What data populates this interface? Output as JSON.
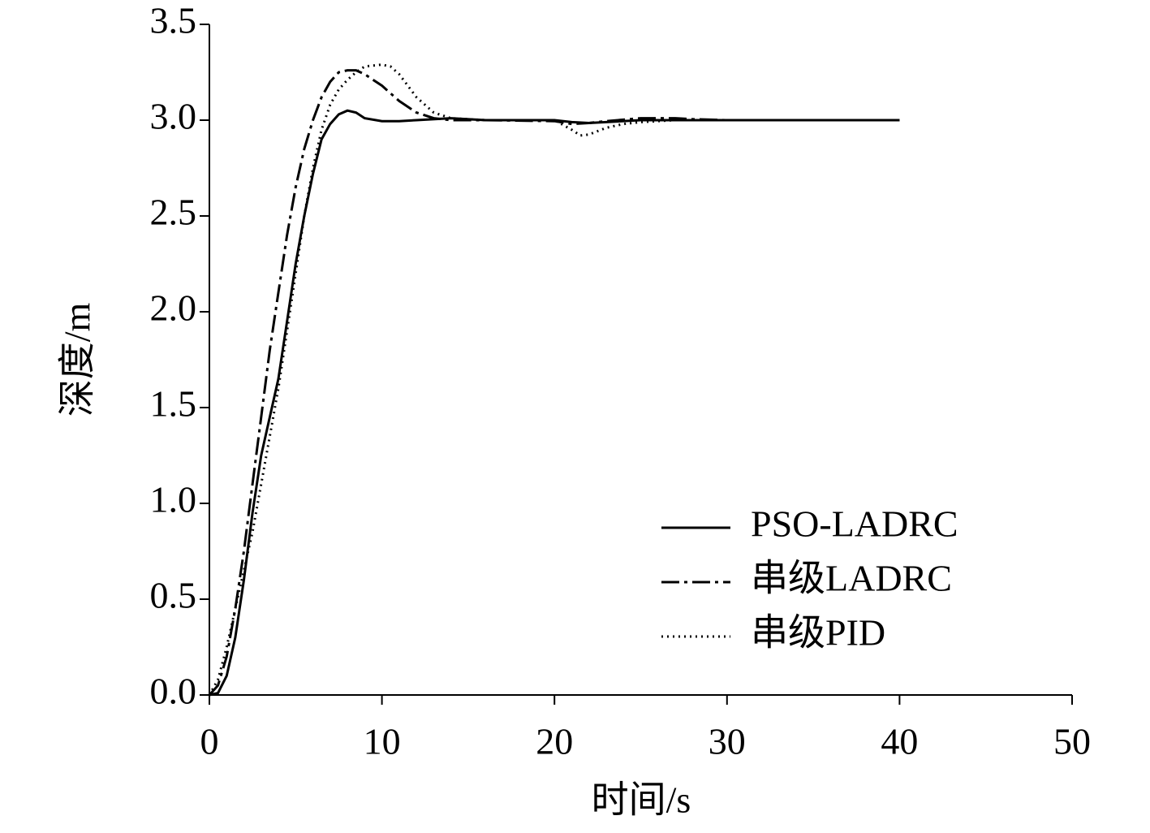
{
  "chart_data": {
    "type": "line",
    "xlabel": "时间/s",
    "ylabel": "深度/m",
    "xlim": [
      0,
      50
    ],
    "xticks": [
      0,
      10,
      20,
      30,
      40,
      50
    ],
    "ylim": [
      0,
      3.5
    ],
    "yticks": [
      {
        "value": 0,
        "label": "0.0"
      },
      {
        "value": 0.5,
        "label": "0.5"
      },
      {
        "value": 1,
        "label": "1.0"
      },
      {
        "value": 1.5,
        "label": "1.5"
      },
      {
        "value": 2,
        "label": "2.0"
      },
      {
        "value": 2.5,
        "label": "2.5"
      },
      {
        "value": 3,
        "label": "3.0"
      },
      {
        "value": 3.5,
        "label": "3.5"
      }
    ],
    "legend": "lower right",
    "series": [
      {
        "name": "PSO-LADRC",
        "color": "#000000",
        "style": "solid",
        "x": [
          0,
          0.5,
          1,
          1.5,
          2,
          2.5,
          3,
          3.5,
          4,
          4.5,
          5,
          5.5,
          6,
          6.5,
          7,
          7.5,
          8,
          8.5,
          9,
          10,
          11,
          12,
          14,
          16,
          20,
          21,
          22,
          23,
          25,
          30,
          40
        ],
        "values": [
          0,
          0.01,
          0.1,
          0.3,
          0.6,
          0.95,
          1.25,
          1.45,
          1.65,
          1.95,
          2.25,
          2.5,
          2.72,
          2.9,
          2.98,
          3.03,
          3.05,
          3.04,
          3.01,
          2.995,
          2.995,
          3.0,
          3.01,
          3.0,
          3.0,
          2.99,
          2.985,
          2.99,
          3.0,
          3.0,
          3.0
        ]
      },
      {
        "name": "串级LADRC",
        "color": "#000000",
        "style": "dashdot",
        "x": [
          0,
          0.5,
          1,
          1.5,
          2,
          2.5,
          3,
          3.5,
          4,
          4.5,
          5,
          5.5,
          6,
          6.5,
          7,
          7.5,
          8,
          8.5,
          9,
          10,
          11,
          12,
          13,
          14,
          16,
          20,
          21,
          22,
          23,
          25,
          27,
          28,
          30,
          40
        ],
        "values": [
          0,
          0.05,
          0.2,
          0.45,
          0.75,
          1.1,
          1.45,
          1.8,
          2.1,
          2.4,
          2.65,
          2.85,
          3.0,
          3.12,
          3.2,
          3.25,
          3.26,
          3.26,
          3.24,
          3.18,
          3.1,
          3.04,
          3.01,
          3.0,
          3.0,
          2.995,
          2.98,
          2.985,
          2.995,
          3.01,
          3.01,
          3.005,
          3.0,
          3.0
        ]
      },
      {
        "name": "串级PID",
        "color": "#000000",
        "style": "dotted",
        "x": [
          0,
          0.5,
          1,
          1.5,
          2,
          2.5,
          3,
          3.5,
          4,
          4.5,
          5,
          5.5,
          6,
          6.5,
          7,
          7.5,
          8,
          8.5,
          9,
          10,
          10.5,
          11,
          12,
          13,
          14,
          16,
          20,
          21,
          21.5,
          22,
          23,
          24,
          25,
          27,
          30,
          40
        ],
        "values": [
          0,
          0.08,
          0.25,
          0.45,
          0.65,
          0.85,
          1.1,
          1.35,
          1.6,
          1.9,
          2.2,
          2.5,
          2.75,
          2.95,
          3.08,
          3.16,
          3.21,
          3.25,
          3.28,
          3.29,
          3.28,
          3.24,
          3.12,
          3.04,
          3.01,
          3.0,
          3.0,
          2.95,
          2.92,
          2.925,
          2.96,
          2.98,
          2.99,
          3.0,
          3.0,
          3.0
        ]
      }
    ]
  }
}
